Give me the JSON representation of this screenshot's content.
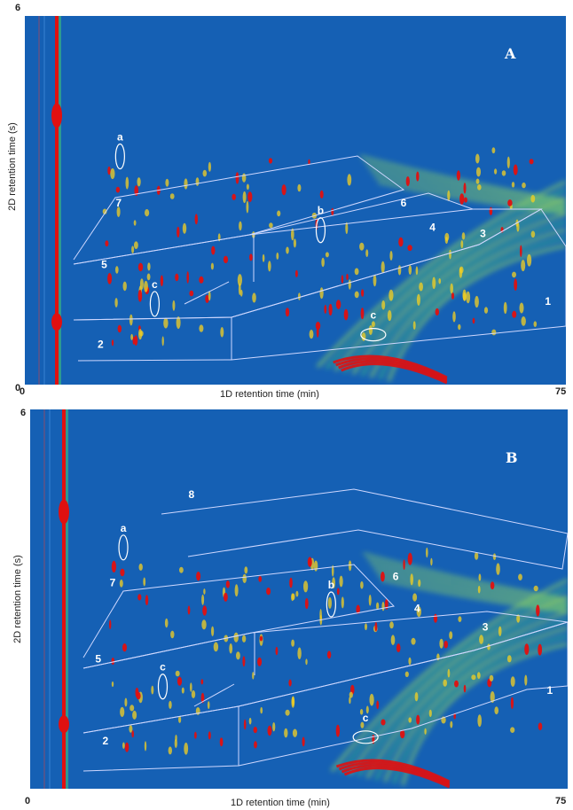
{
  "colors": {
    "background": "#1560b4",
    "band": "#3ec27a",
    "band_light": "#9be35a",
    "peak": "#e01010",
    "peak_halo": "#f5d020",
    "zone_line": "#cfd8ff",
    "annotation": "#ffffff"
  },
  "chart_data": [
    {
      "type": "heatmap",
      "panel": "A",
      "panel_label": "A",
      "xlabel": "1D retention time (min)",
      "ylabel": "2D retention time (s)",
      "xlim": [
        0,
        75
      ],
      "ylim": [
        0,
        6
      ],
      "x_ticks": [
        "0",
        "75"
      ],
      "y_ticks": [
        "0",
        "6"
      ],
      "zones": [
        {
          "label": "1",
          "x": 72.5,
          "y": 1.3
        },
        {
          "label": "2",
          "x": 10.5,
          "y": 0.6
        },
        {
          "label": "3",
          "x": 63.5,
          "y": 2.4
        },
        {
          "label": "4",
          "x": 56.5,
          "y": 2.5
        },
        {
          "label": "5",
          "x": 11.0,
          "y": 1.9
        },
        {
          "label": "6",
          "x": 52.5,
          "y": 2.9
        },
        {
          "label": "7",
          "x": 13.0,
          "y": 2.9
        }
      ],
      "annotations": [
        {
          "label": "a",
          "x": 13.2,
          "y": 3.8
        },
        {
          "label": "b",
          "x": 41.0,
          "y": 2.6
        },
        {
          "label": "c",
          "x": 18.0,
          "y": 1.4
        },
        {
          "label": "c",
          "x": 48.3,
          "y": 0.9
        }
      ]
    },
    {
      "type": "heatmap",
      "panel": "B",
      "panel_label": "B",
      "xlabel": "1D retention time (min)",
      "ylabel": "2D retention time (s)",
      "xlim": [
        0,
        75
      ],
      "ylim": [
        0,
        6
      ],
      "x_ticks": [
        "0",
        "75"
      ],
      "y_ticks": [
        "0",
        "6"
      ],
      "zones": [
        {
          "label": "1",
          "x": 72.5,
          "y": 1.5
        },
        {
          "label": "2",
          "x": 10.5,
          "y": 0.7
        },
        {
          "label": "3",
          "x": 63.5,
          "y": 2.5
        },
        {
          "label": "4",
          "x": 54.0,
          "y": 2.8
        },
        {
          "label": "5",
          "x": 9.5,
          "y": 2.0
        },
        {
          "label": "6",
          "x": 51.0,
          "y": 3.3
        },
        {
          "label": "7",
          "x": 11.5,
          "y": 3.2
        },
        {
          "label": "8",
          "x": 22.5,
          "y": 4.6
        }
      ],
      "annotations": [
        {
          "label": "a",
          "x": 13.0,
          "y": 3.9
        },
        {
          "label": "b",
          "x": 42.0,
          "y": 3.0
        },
        {
          "label": "c",
          "x": 18.5,
          "y": 1.7
        },
        {
          "label": "c",
          "x": 46.8,
          "y": 0.9
        }
      ]
    }
  ]
}
